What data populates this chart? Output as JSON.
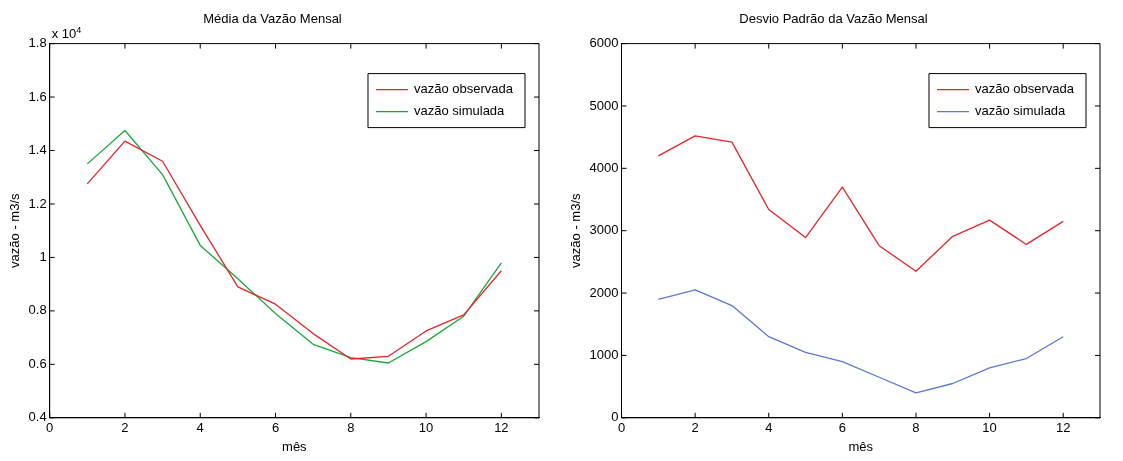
{
  "chart_data": [
    {
      "type": "line",
      "title": "Média da Vazão Mensal",
      "xlabel": "mês",
      "ylabel": "vazão - m3/s",
      "annotations": [
        "x 10$^{4}$"
      ],
      "x": [
        1,
        2,
        3,
        4,
        5,
        6,
        7,
        8,
        9,
        10,
        11,
        12
      ],
      "xlim": [
        0,
        13
      ],
      "xticks": [
        0,
        2,
        4,
        6,
        8,
        10,
        12
      ],
      "ylim": [
        0.4,
        1.8
      ],
      "yticks": [
        0.4,
        0.6,
        0.8,
        1,
        1.2,
        1.4,
        1.6,
        1.8
      ],
      "grid": false,
      "legend": "top right",
      "marker": "none",
      "line_style": "solid",
      "series": [
        {
          "name": "vazão observada",
          "color": "#e8232a",
          "values": [
            1.275,
            1.435,
            1.36,
            1.12,
            0.89,
            0.825,
            0.715,
            0.62,
            0.63,
            0.725,
            0.785,
            0.95
          ]
        },
        {
          "name": "vazão simulada",
          "color": "#1aa83a",
          "values": [
            1.35,
            1.475,
            1.31,
            1.045,
            0.92,
            0.79,
            0.675,
            0.625,
            0.605,
            0.685,
            0.78,
            0.98
          ]
        }
      ]
    },
    {
      "type": "line",
      "title": "Desvio Padrão da Vazão Mensal",
      "xlabel": "mês",
      "ylabel": "vazão - m3/s",
      "x": [
        1,
        2,
        3,
        4,
        5,
        6,
        7,
        8,
        9,
        10,
        11,
        12
      ],
      "xlim": [
        0,
        13
      ],
      "xticks": [
        0,
        2,
        4,
        6,
        8,
        10,
        12
      ],
      "ylim": [
        0,
        6000
      ],
      "yticks": [
        0,
        1000,
        2000,
        3000,
        4000,
        5000,
        6000
      ],
      "grid": false,
      "legend": "top right",
      "marker": "none",
      "line_style": "solid",
      "series": [
        {
          "name": "vazão observada",
          "color": "#e8232a",
          "values": [
            4200,
            4520,
            4420,
            3340,
            2890,
            3700,
            2760,
            2350,
            2910,
            3170,
            2780,
            3150
          ]
        },
        {
          "name": "vazão simulada",
          "color": "#5a78d8",
          "values": [
            1900,
            2050,
            1800,
            1300,
            1050,
            900,
            650,
            400,
            550,
            800,
            950,
            1300
          ]
        }
      ]
    }
  ]
}
